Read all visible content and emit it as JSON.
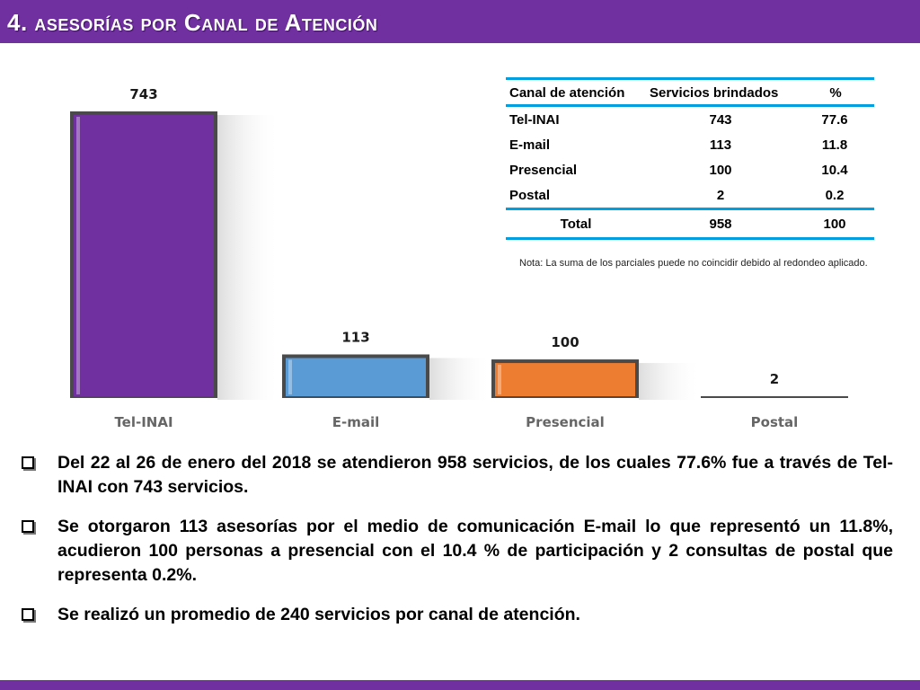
{
  "title": "4. asesorías por Canal de Atención",
  "colors": {
    "header": "#7030a0",
    "bar_tel_inai": "#7030a0",
    "bar_email": "#5b9bd5",
    "bar_presencial": "#ed7d31",
    "bar_postal": "#a5a5a5",
    "table_rule": "#00a0e0"
  },
  "chart_data": {
    "type": "bar",
    "categories": [
      "Tel-INAI",
      "E-mail",
      "Presencial",
      "Postal"
    ],
    "values": [
      743,
      113,
      100,
      2
    ],
    "value_labels": [
      "743",
      "113",
      "100",
      "2"
    ],
    "title": "",
    "xlabel": "",
    "ylabel": "",
    "ylim": [
      0,
      743
    ],
    "grid": false,
    "legend": "none"
  },
  "table": {
    "headers": [
      "Canal de atención",
      "Servicios brindados",
      "%"
    ],
    "rows": [
      [
        "Tel-INAI",
        "743",
        "77.6"
      ],
      [
        "E-mail",
        "113",
        "11.8"
      ],
      [
        "Presencial",
        "100",
        "10.4"
      ],
      [
        "Postal",
        "2",
        "0.2"
      ]
    ],
    "total": [
      "Total",
      "958",
      "100"
    ]
  },
  "note": "Nota: La suma de los parciales puede no coincidir debido al redondeo aplicado.",
  "bullets": [
    "Del 22 al 26 de enero del 2018 se atendieron 958 servicios, de los cuales 77.6% fue a través de Tel-INAI con 743 servicios.",
    "Se otorgaron 113 asesorías por el medio de comunicación E-mail lo que representó un 11.8%, acudieron 100 personas a presencial con el 10.4 % de participación y 2 consultas de postal que representa 0.2%.",
    "Se realizó un promedio de 240 servicios por canal de atención."
  ]
}
